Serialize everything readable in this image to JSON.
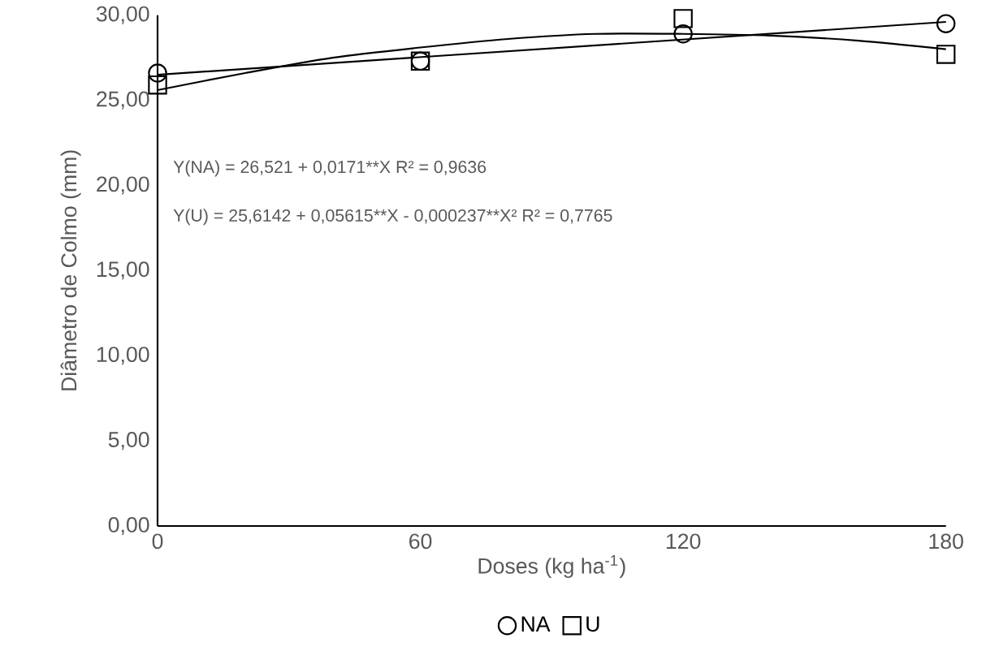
{
  "chart_data": {
    "type": "scatter",
    "xlabel": "Doses (kg ha$^{-1}$)",
    "ylabel": "Diâmetro de Colmo (mm)",
    "xlim": [
      0,
      180
    ],
    "xticks": [
      0,
      60,
      120,
      180
    ],
    "ylim": [
      0,
      30
    ],
    "yticks": [
      {
        "value": 0,
        "label": "0,00"
      },
      {
        "value": 5,
        "label": "5,00"
      },
      {
        "value": 10,
        "label": "10,00"
      },
      {
        "value": 15,
        "label": "15,00"
      },
      {
        "value": 20,
        "label": "20,00"
      },
      {
        "value": 25,
        "label": "25,00"
      },
      {
        "value": 30,
        "label": "30,00"
      }
    ],
    "legend": "bottom",
    "annotations": [
      "Y(NA) = 26,521 + 0,0171**X  R² = 0,9636",
      "Y(U) = 25,6142 + 0,05615**X",
      " - 0,000237**X² R² = 0,7765"
    ],
    "series": [
      {
        "name": "NA",
        "marker": "circle",
        "color": "#000000",
        "x": [
          0,
          60,
          120,
          180
        ],
        "values": [
          26.6,
          27.3,
          28.9,
          29.5
        ]
      },
      {
        "name": "U",
        "marker": "square",
        "color": "#000000",
        "x": [
          0,
          60,
          120,
          180
        ],
        "values": [
          25.9,
          27.3,
          29.8,
          27.7
        ]
      },
      {
        "type": "line",
        "marker": "none",
        "color": "#000000",
        "x": [
          0,
          180
        ],
        "values": [
          26.5,
          29.6
        ]
      },
      {
        "type": "line",
        "marker": "none",
        "color": "#000000",
        "x": [
          0,
          20,
          40,
          60,
          80,
          100,
          120,
          140,
          160,
          180
        ],
        "values": [
          25.6,
          26.6,
          27.5,
          28.1,
          28.6,
          28.9,
          28.9,
          28.8,
          28.5,
          28.0
        ]
      }
    ]
  }
}
